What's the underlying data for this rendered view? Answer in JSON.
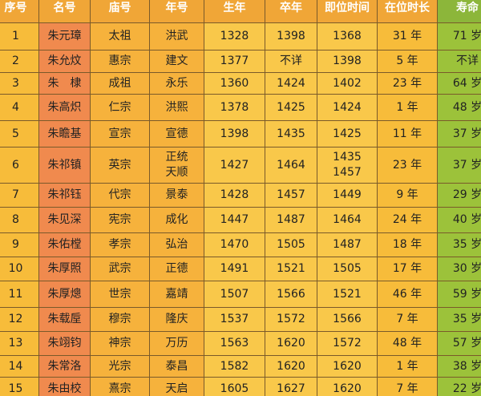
{
  "table": {
    "headers": [
      "序号",
      "名号",
      "庙号",
      "年号",
      "生年",
      "卒年",
      "即位时间",
      "在位时长",
      "寿命"
    ],
    "rows": [
      [
        "1",
        "朱元璋",
        "太祖",
        "洪武",
        "1328",
        "1398",
        "1368",
        "31 年",
        "71 岁"
      ],
      [
        "2",
        "朱允炆",
        "惠宗",
        "建文",
        "1377",
        "不详",
        "1398",
        "5 年",
        "不详"
      ],
      [
        "3",
        "朱　棣",
        "成祖",
        "永乐",
        "1360",
        "1424",
        "1402",
        "23 年",
        "64 岁"
      ],
      [
        "4",
        "朱高炽",
        "仁宗",
        "洪熙",
        "1378",
        "1425",
        "1424",
        "1 年",
        "48 岁"
      ],
      [
        "5",
        "朱瞻基",
        "宣宗",
        "宣德",
        "1398",
        "1435",
        "1425",
        "11 年",
        "37 岁"
      ],
      [
        "6",
        "朱祁镇",
        "英宗",
        [
          "正统",
          "天顺"
        ],
        "1427",
        "1464",
        [
          "1435",
          "1457"
        ],
        "23 年",
        "37 岁"
      ],
      [
        "7",
        "朱祁钰",
        "代宗",
        "景泰",
        "1428",
        "1457",
        "1449",
        "9 年",
        "29 岁"
      ],
      [
        "8",
        "朱见深",
        "宪宗",
        "成化",
        "1447",
        "1487",
        "1464",
        "24 年",
        "40 岁"
      ],
      [
        "9",
        "朱佑樘",
        "孝宗",
        "弘治",
        "1470",
        "1505",
        "1487",
        "18 年",
        "35 岁"
      ],
      [
        "10",
        "朱厚照",
        "武宗",
        "正德",
        "1491",
        "1521",
        "1505",
        "17 年",
        "30 岁"
      ],
      [
        "11",
        "朱厚熜",
        "世宗",
        "嘉靖",
        "1507",
        "1566",
        "1521",
        "46 年",
        "59 岁"
      ],
      [
        "12",
        "朱载垕",
        "穆宗",
        "隆庆",
        "1537",
        "1572",
        "1566",
        "7 年",
        "35 岁"
      ],
      [
        "13",
        "朱翊钧",
        "神宗",
        "万历",
        "1563",
        "1620",
        "1572",
        "48 年",
        "57 岁"
      ],
      [
        "14",
        "朱常洛",
        "光宗",
        "泰昌",
        "1582",
        "1620",
        "1620",
        "1 年",
        "38 岁"
      ],
      [
        "15",
        "朱由校",
        "熹宗",
        "天启",
        "1605",
        "1627",
        "1620",
        "7 年",
        "22 岁"
      ]
    ]
  }
}
